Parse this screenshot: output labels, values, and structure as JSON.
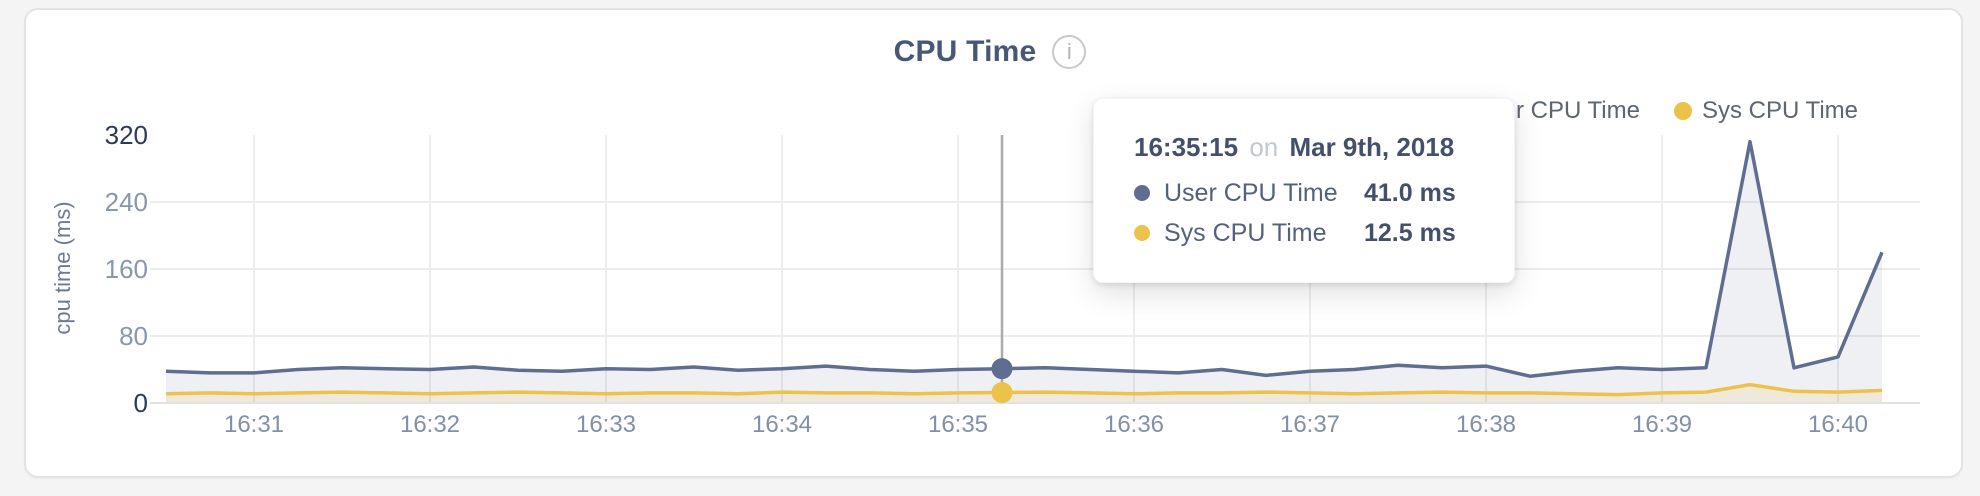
{
  "card": {
    "title": "CPU Time",
    "info_glyph": "i"
  },
  "legend": [
    {
      "label": "User CPU Time",
      "color": "#5e6d90"
    },
    {
      "label": "Sys CPU Time",
      "color": "#ecc24a"
    }
  ],
  "tooltip": {
    "time": "16:35:15",
    "connector": "on",
    "date": "Mar 9th, 2018",
    "rows": [
      {
        "label": "User CPU Time",
        "value": "41.0 ms",
        "color": "#5e6d90"
      },
      {
        "label": "Sys CPU Time",
        "value": "12.5 ms",
        "color": "#ecc24a"
      }
    ]
  },
  "chart_data": {
    "type": "area",
    "title": "CPU Time",
    "ylabel": "cpu time (ms)",
    "ylim": [
      0,
      320
    ],
    "yticks": [
      0,
      80,
      160,
      240,
      320
    ],
    "xticks": [
      "16:31",
      "16:32",
      "16:33",
      "16:34",
      "16:35",
      "16:36",
      "16:37",
      "16:38",
      "16:39",
      "16:40"
    ],
    "grid": true,
    "legend_position": "top-right",
    "hover_index": 19,
    "x": [
      "16:30:30",
      "16:30:45",
      "16:31:00",
      "16:31:15",
      "16:31:30",
      "16:31:45",
      "16:32:00",
      "16:32:15",
      "16:32:30",
      "16:32:45",
      "16:33:00",
      "16:33:15",
      "16:33:30",
      "16:33:45",
      "16:34:00",
      "16:34:15",
      "16:34:30",
      "16:34:45",
      "16:35:00",
      "16:35:15",
      "16:35:30",
      "16:35:45",
      "16:36:00",
      "16:36:15",
      "16:36:30",
      "16:36:45",
      "16:37:00",
      "16:37:15",
      "16:37:30",
      "16:37:45",
      "16:38:00",
      "16:38:15",
      "16:38:30",
      "16:38:45",
      "16:39:00",
      "16:39:15",
      "16:39:30",
      "16:39:45",
      "16:40:00",
      "16:40:15"
    ],
    "series": [
      {
        "name": "User CPU Time",
        "color": "#5e6d90",
        "fill": "rgba(94,109,144,0.10)",
        "values": [
          38,
          36,
          36,
          40,
          42,
          41,
          40,
          43,
          39,
          38,
          41,
          40,
          43,
          39,
          41,
          44,
          40,
          38,
          40,
          41,
          42,
          40,
          38,
          36,
          40,
          33,
          38,
          40,
          45,
          42,
          44,
          32,
          38,
          42,
          40,
          42,
          312,
          42,
          55,
          180
        ]
      },
      {
        "name": "Sys CPU Time",
        "color": "#ecc24a",
        "fill": "rgba(236,194,74,0.14)",
        "values": [
          11,
          12,
          11,
          12,
          13,
          12,
          11,
          12,
          13,
          12,
          11,
          12,
          12,
          11,
          13,
          12,
          12,
          11,
          12,
          12.5,
          13,
          12,
          11,
          12,
          12,
          13,
          12,
          11,
          12,
          13,
          12,
          12,
          11,
          10,
          12,
          13,
          22,
          14,
          13,
          15
        ]
      }
    ]
  },
  "colors": {
    "user": "#5e6d90",
    "sys": "#ecc24a",
    "grid": "#ededed",
    "baseline": "#e2e2e2",
    "crosshair": "#a9abad",
    "tick_dark": "#2b3a57",
    "tick_light": "#8997ab"
  }
}
